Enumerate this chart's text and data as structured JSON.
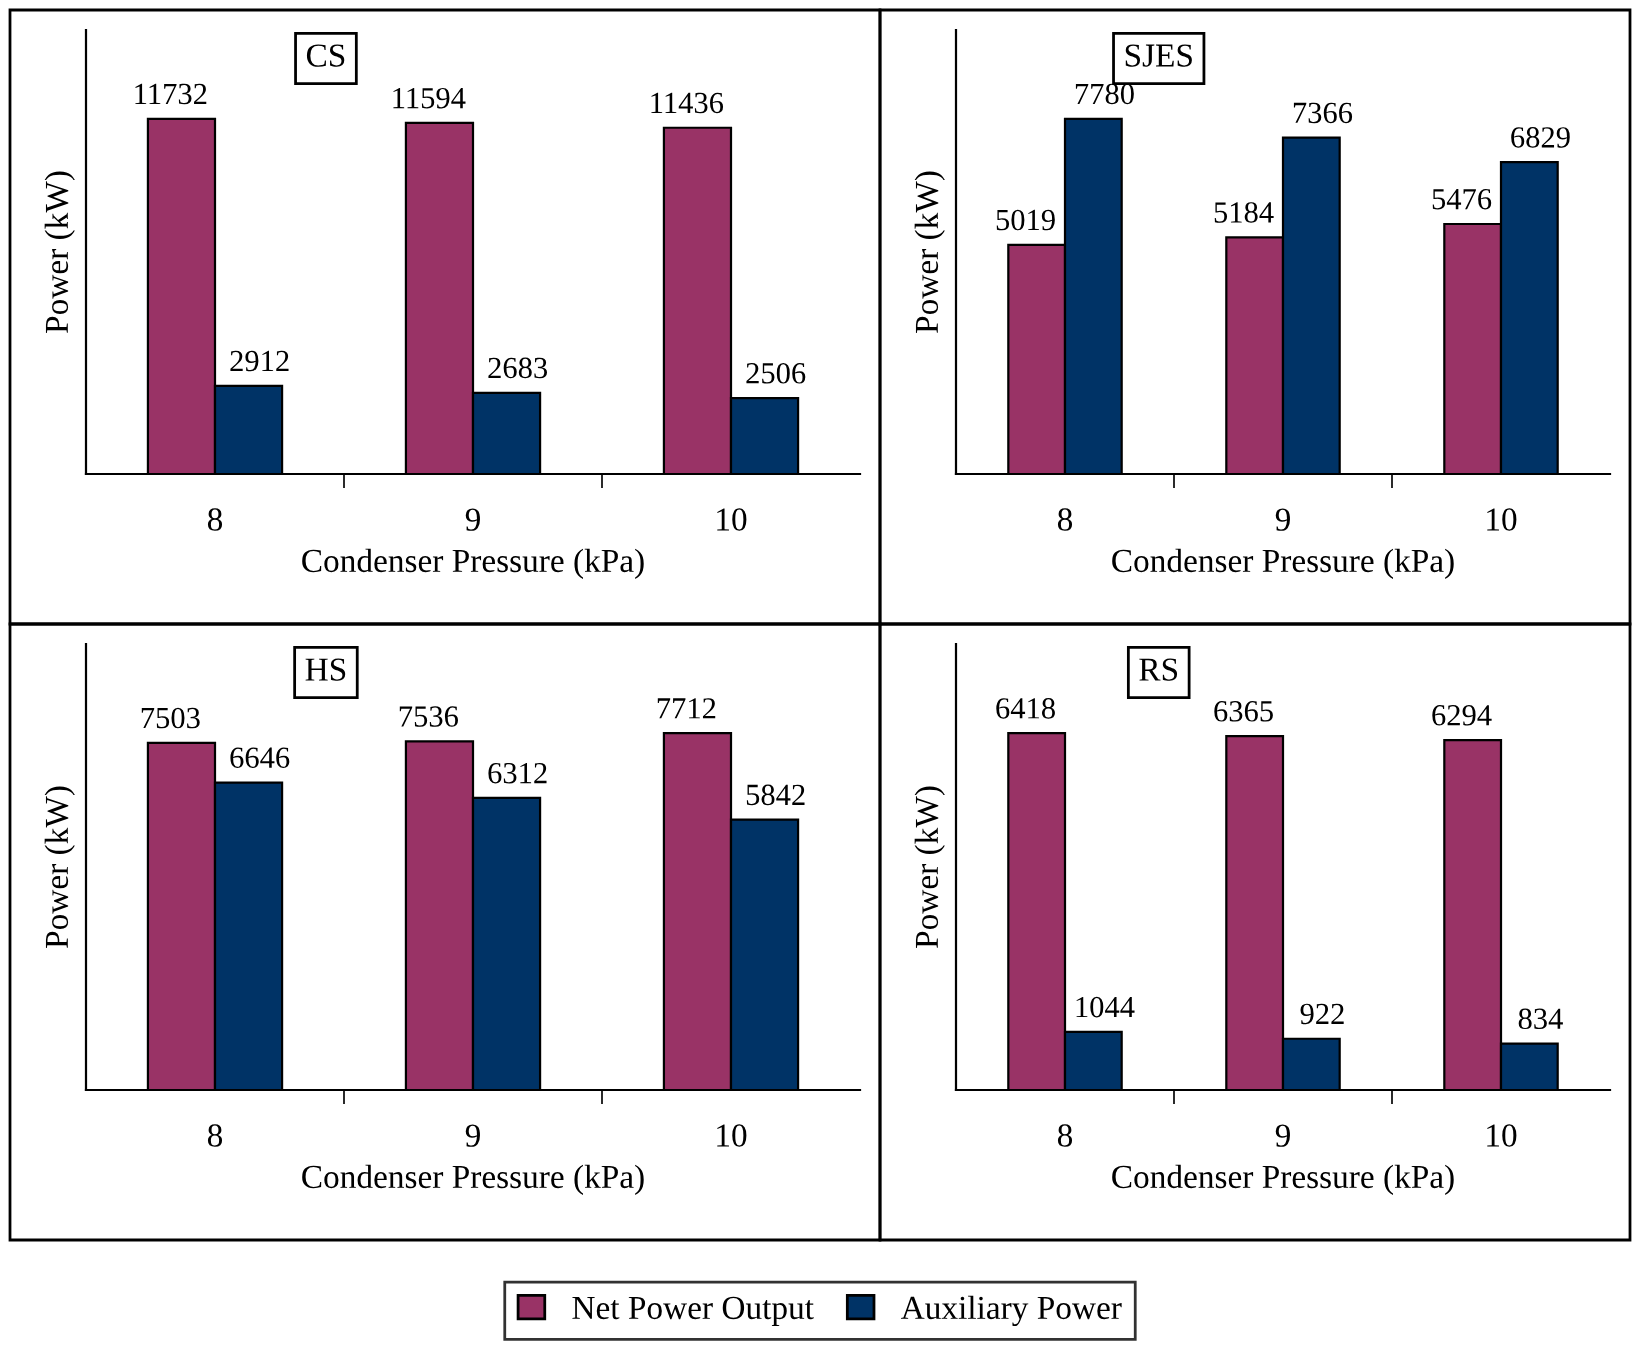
{
  "chart_data": [
    {
      "type": "bar",
      "title": "CS",
      "xlabel": "Condenser Pressure (kPa)",
      "ylabel": "Power (kW)",
      "categories": [
        "8",
        "9",
        "10"
      ],
      "tick_labels": "x",
      "data_labels": true,
      "legend": "bottom",
      "grid": false,
      "series": [
        {
          "name": "Net Power Output",
          "color": "#993366",
          "values": [
            11732,
            11594,
            11436
          ]
        },
        {
          "name": "Auxiliary Power",
          "color": "#003366",
          "values": [
            2912,
            2683,
            2506
          ]
        }
      ]
    },
    {
      "type": "bar",
      "title": "SJES",
      "xlabel": "Condenser Pressure (kPa)",
      "ylabel": "Power (kW)",
      "categories": [
        "8",
        "9",
        "10"
      ],
      "tick_labels": "x",
      "data_labels": true,
      "grid": false,
      "series": [
        {
          "color": "#993366",
          "values": [
            5019,
            5184,
            5476
          ]
        },
        {
          "color": "#003366",
          "values": [
            7780,
            7366,
            6829
          ]
        }
      ]
    },
    {
      "type": "bar",
      "title": "HS",
      "xlabel": "Condenser Pressure (kPa)",
      "ylabel": "Power (kW)",
      "categories": [
        "8",
        "9",
        "10"
      ],
      "tick_labels": "x",
      "data_labels": true,
      "grid": false,
      "series": [
        {
          "color": "#993366",
          "values": [
            7503,
            7536,
            7712
          ]
        },
        {
          "color": "#003366",
          "values": [
            6646,
            6312,
            5842
          ]
        }
      ]
    },
    {
      "type": "bar",
      "title": "RS",
      "xlabel": "Condenser Pressure (kPa)",
      "ylabel": "Power (kW)",
      "categories": [
        "8",
        "9",
        "10"
      ],
      "tick_labels": "x",
      "data_labels": true,
      "grid": false,
      "series": [
        {
          "color": "#993366",
          "values": [
            6418,
            6365,
            6294
          ]
        },
        {
          "color": "#003366",
          "values": [
            1044,
            922,
            834
          ]
        }
      ]
    }
  ]
}
